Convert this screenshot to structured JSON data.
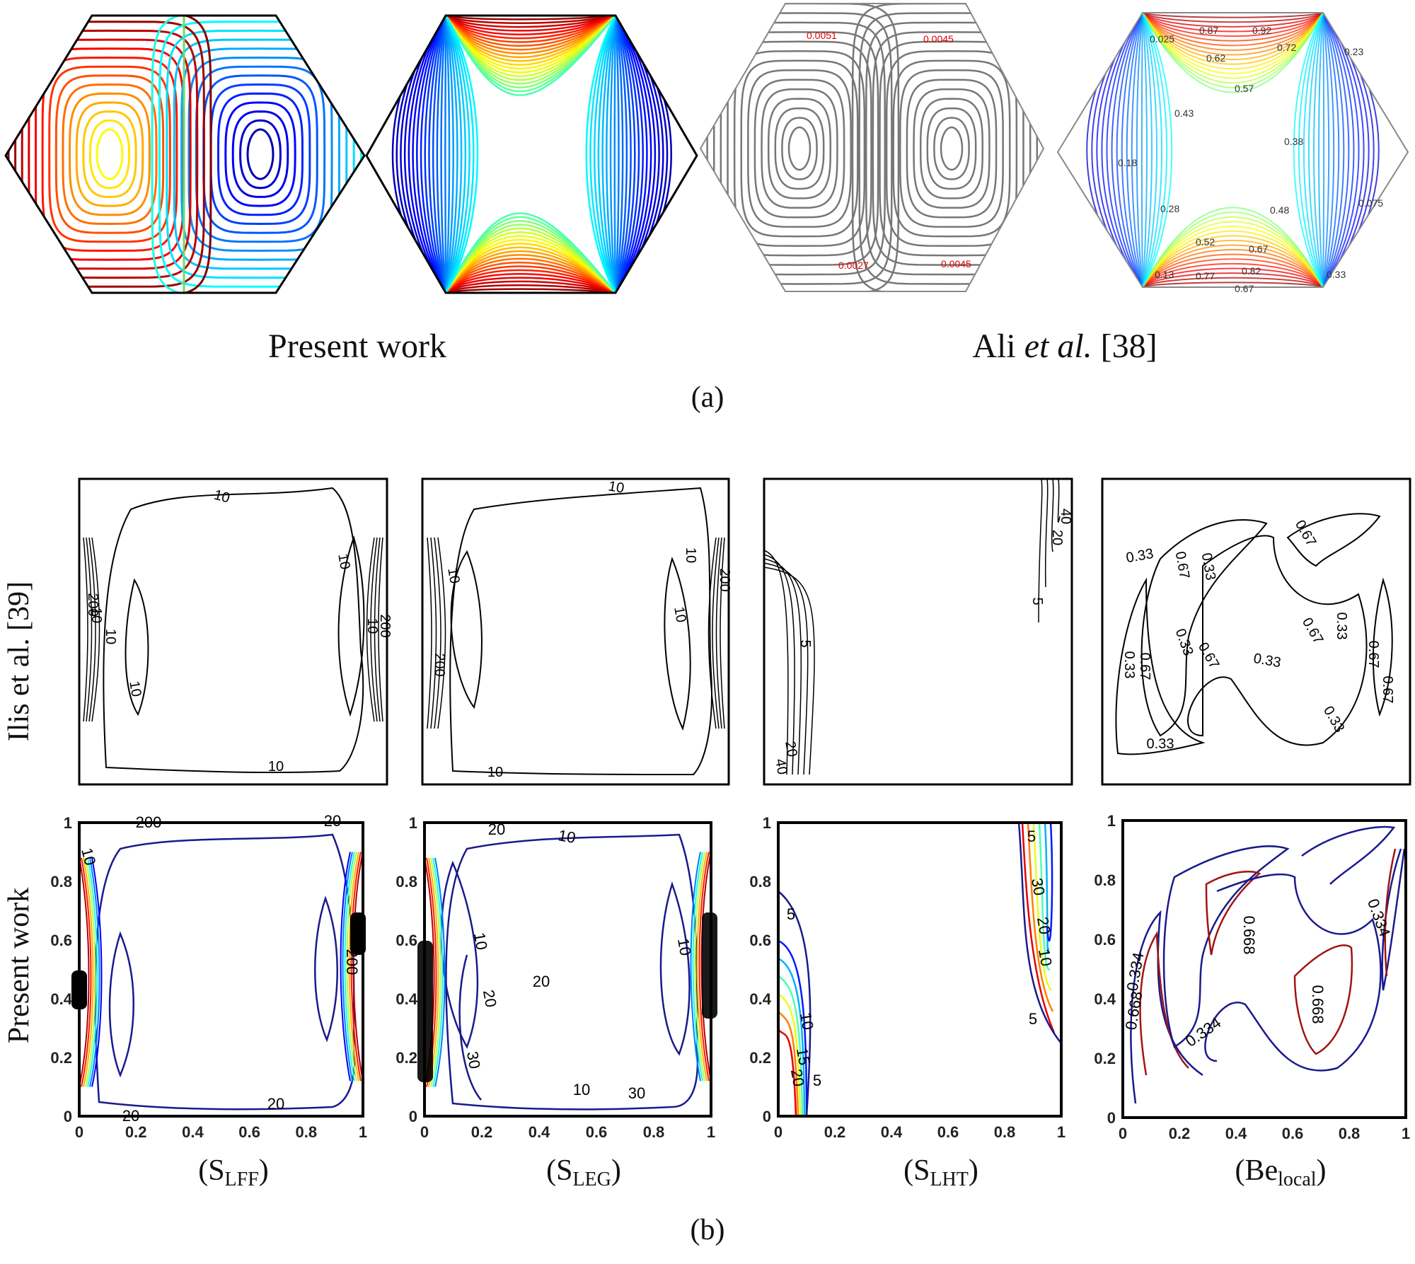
{
  "part_a": {
    "caption_left": "Present work",
    "caption_right_author": "Ali ",
    "caption_right_etal": "et al.",
    "caption_right_ref": " [38]",
    "panel_label": "(a)",
    "ali_stream_labels": [
      "0.0051",
      "0.0045",
      "0.0027",
      "0.0045"
    ],
    "ali_temp_labels": [
      "0.025",
      "0.87",
      "0.92",
      "0.72",
      "0.23",
      "0.62",
      "0.57",
      "0.43",
      "0.38",
      "0.18",
      "0.28",
      "0.48",
      "0.075",
      "0.52",
      "0.67",
      "0.13",
      "0.77",
      "0.82",
      "0.33",
      "0.67"
    ]
  },
  "part_b": {
    "row_label_top": "Ilis et al. [39]",
    "row_label_bottom": "Present work",
    "panel_label": "(b)",
    "column_captions": [
      {
        "main": "S",
        "sub": "LFF"
      },
      {
        "main": "S",
        "sub": "LEG"
      },
      {
        "main": "S",
        "sub": "LHT"
      },
      {
        "main": "Be",
        "sub": "local"
      }
    ],
    "ilis_labels": {
      "lff": [
        "10",
        "10",
        "10",
        "10",
        "10",
        "10",
        "10",
        "200",
        "200"
      ],
      "leg": [
        "10",
        "10",
        "10",
        "10",
        "10",
        "200",
        "200"
      ],
      "lht": [
        "40",
        "20",
        "5",
        "5",
        "20",
        "40"
      ],
      "be": [
        "0.33",
        "0.67",
        "0.33",
        "0.67",
        "0.33",
        "0.67",
        "0.33",
        "0.67",
        "0.33",
        "0.67",
        "0.33",
        "0.67",
        "0.33",
        "0.67",
        "0.33"
      ]
    },
    "present_labels": {
      "lff": [
        "10",
        "20",
        "20",
        "20",
        "200",
        "200"
      ],
      "leg": [
        "10",
        "20",
        "10",
        "20",
        "30",
        "10",
        "20",
        "30",
        "10"
      ],
      "lht": [
        "5",
        "10",
        "15",
        "20",
        "5",
        "5",
        "30",
        "20",
        "10",
        "5"
      ],
      "be": [
        "0.334",
        "0.668",
        "0.668",
        "0.334",
        "0.334",
        "0.668"
      ]
    },
    "x_ticks": [
      "0",
      "0.2",
      "0.4",
      "0.6",
      "0.8",
      "1"
    ],
    "y_ticks": [
      "0",
      "0.2",
      "0.4",
      "0.6",
      "0.8",
      "1"
    ]
  }
}
